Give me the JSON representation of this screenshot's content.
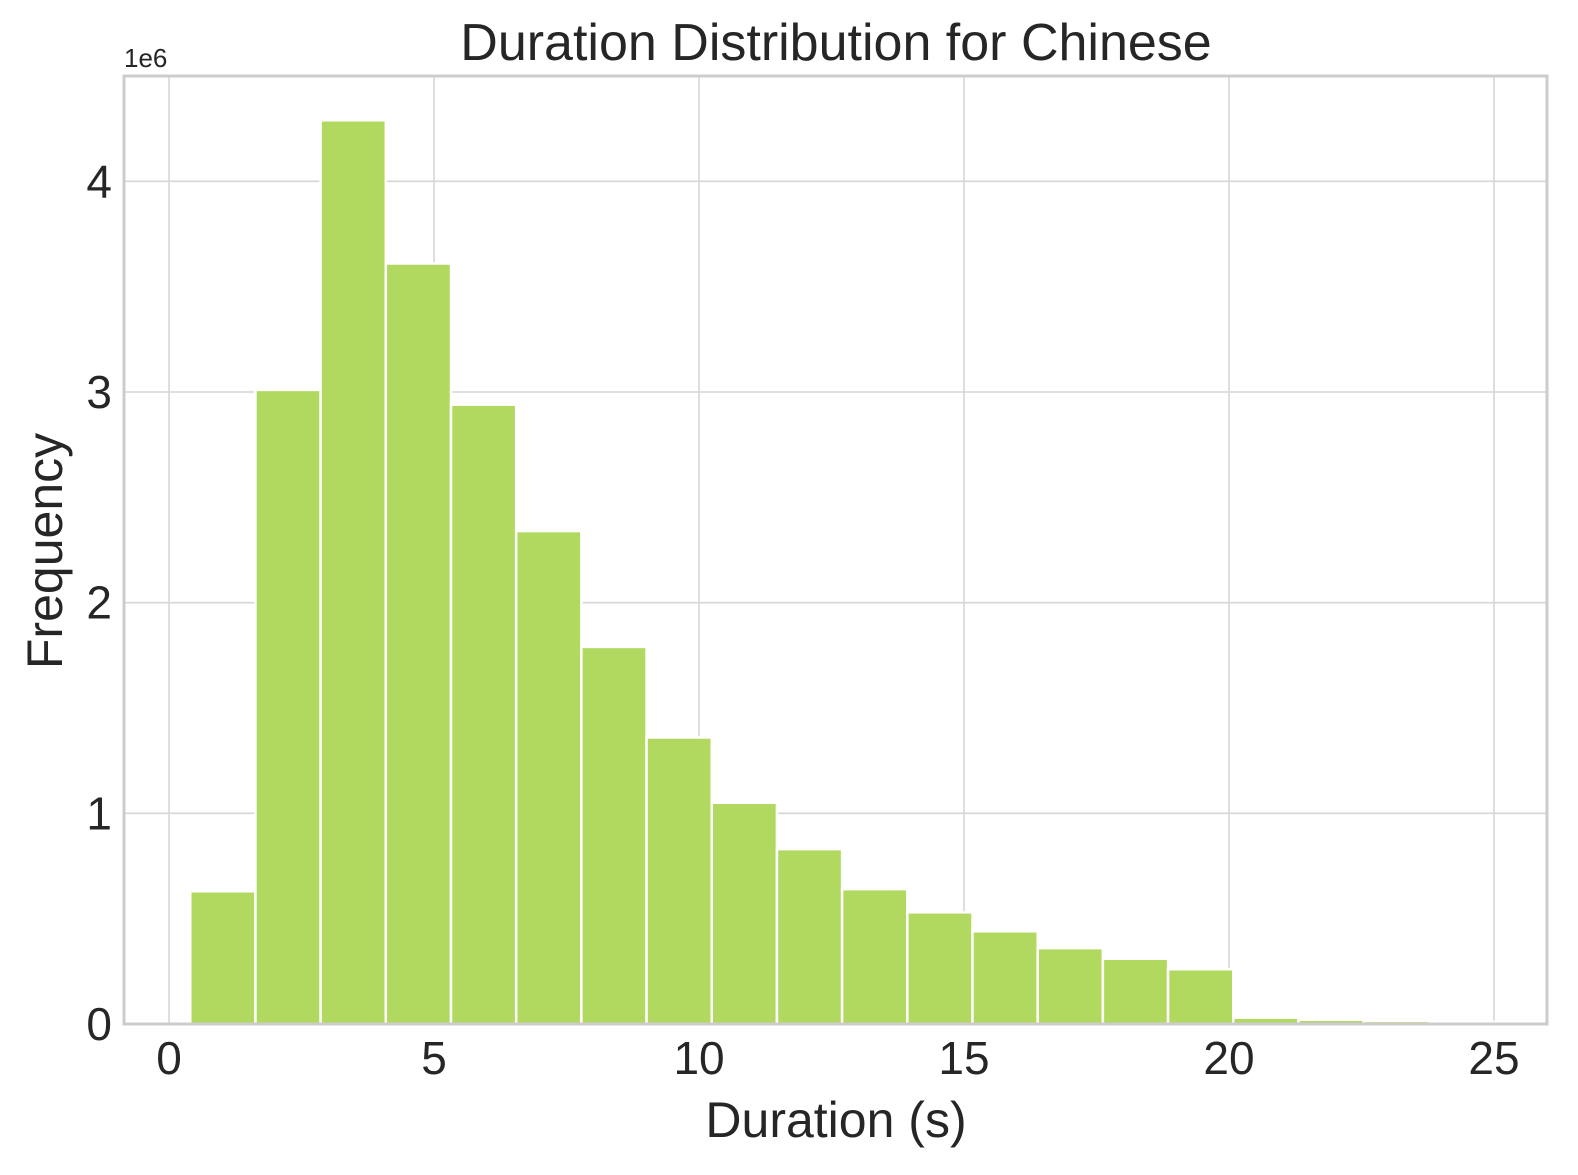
{
  "chart_data": {
    "type": "bar",
    "title": "Duration Distribution for Chinese",
    "xlabel": "Duration (s)",
    "ylabel": "Frequency",
    "y_offset_label": "1e6",
    "y_scale": 1000000,
    "xlim": [
      -0.85,
      26.0
    ],
    "ylim": [
      0,
      4500000
    ],
    "xticks": [
      0,
      5,
      10,
      15,
      20,
      25
    ],
    "xtick_labels": [
      "0",
      "5",
      "10",
      "15",
      "20",
      "25"
    ],
    "yticks": [
      0,
      1000000,
      2000000,
      3000000,
      4000000
    ],
    "ytick_labels": [
      "0",
      "1",
      "2",
      "3",
      "4"
    ],
    "grid": true,
    "bar_color": "#b1d95f",
    "bin_edges": [
      0.4,
      1.63,
      2.86,
      4.09,
      5.32,
      6.55,
      7.78,
      9.01,
      10.24,
      11.47,
      12.7,
      13.93,
      15.16,
      16.39,
      17.62,
      18.85,
      20.08,
      21.31,
      22.54,
      23.77,
      25.0
    ],
    "values": [
      630000,
      3010000,
      4290000,
      3610000,
      2940000,
      2340000,
      1790000,
      1360000,
      1050000,
      830000,
      640000,
      530000,
      440000,
      360000,
      310000,
      260000,
      30000,
      20000,
      15000,
      10000
    ]
  }
}
